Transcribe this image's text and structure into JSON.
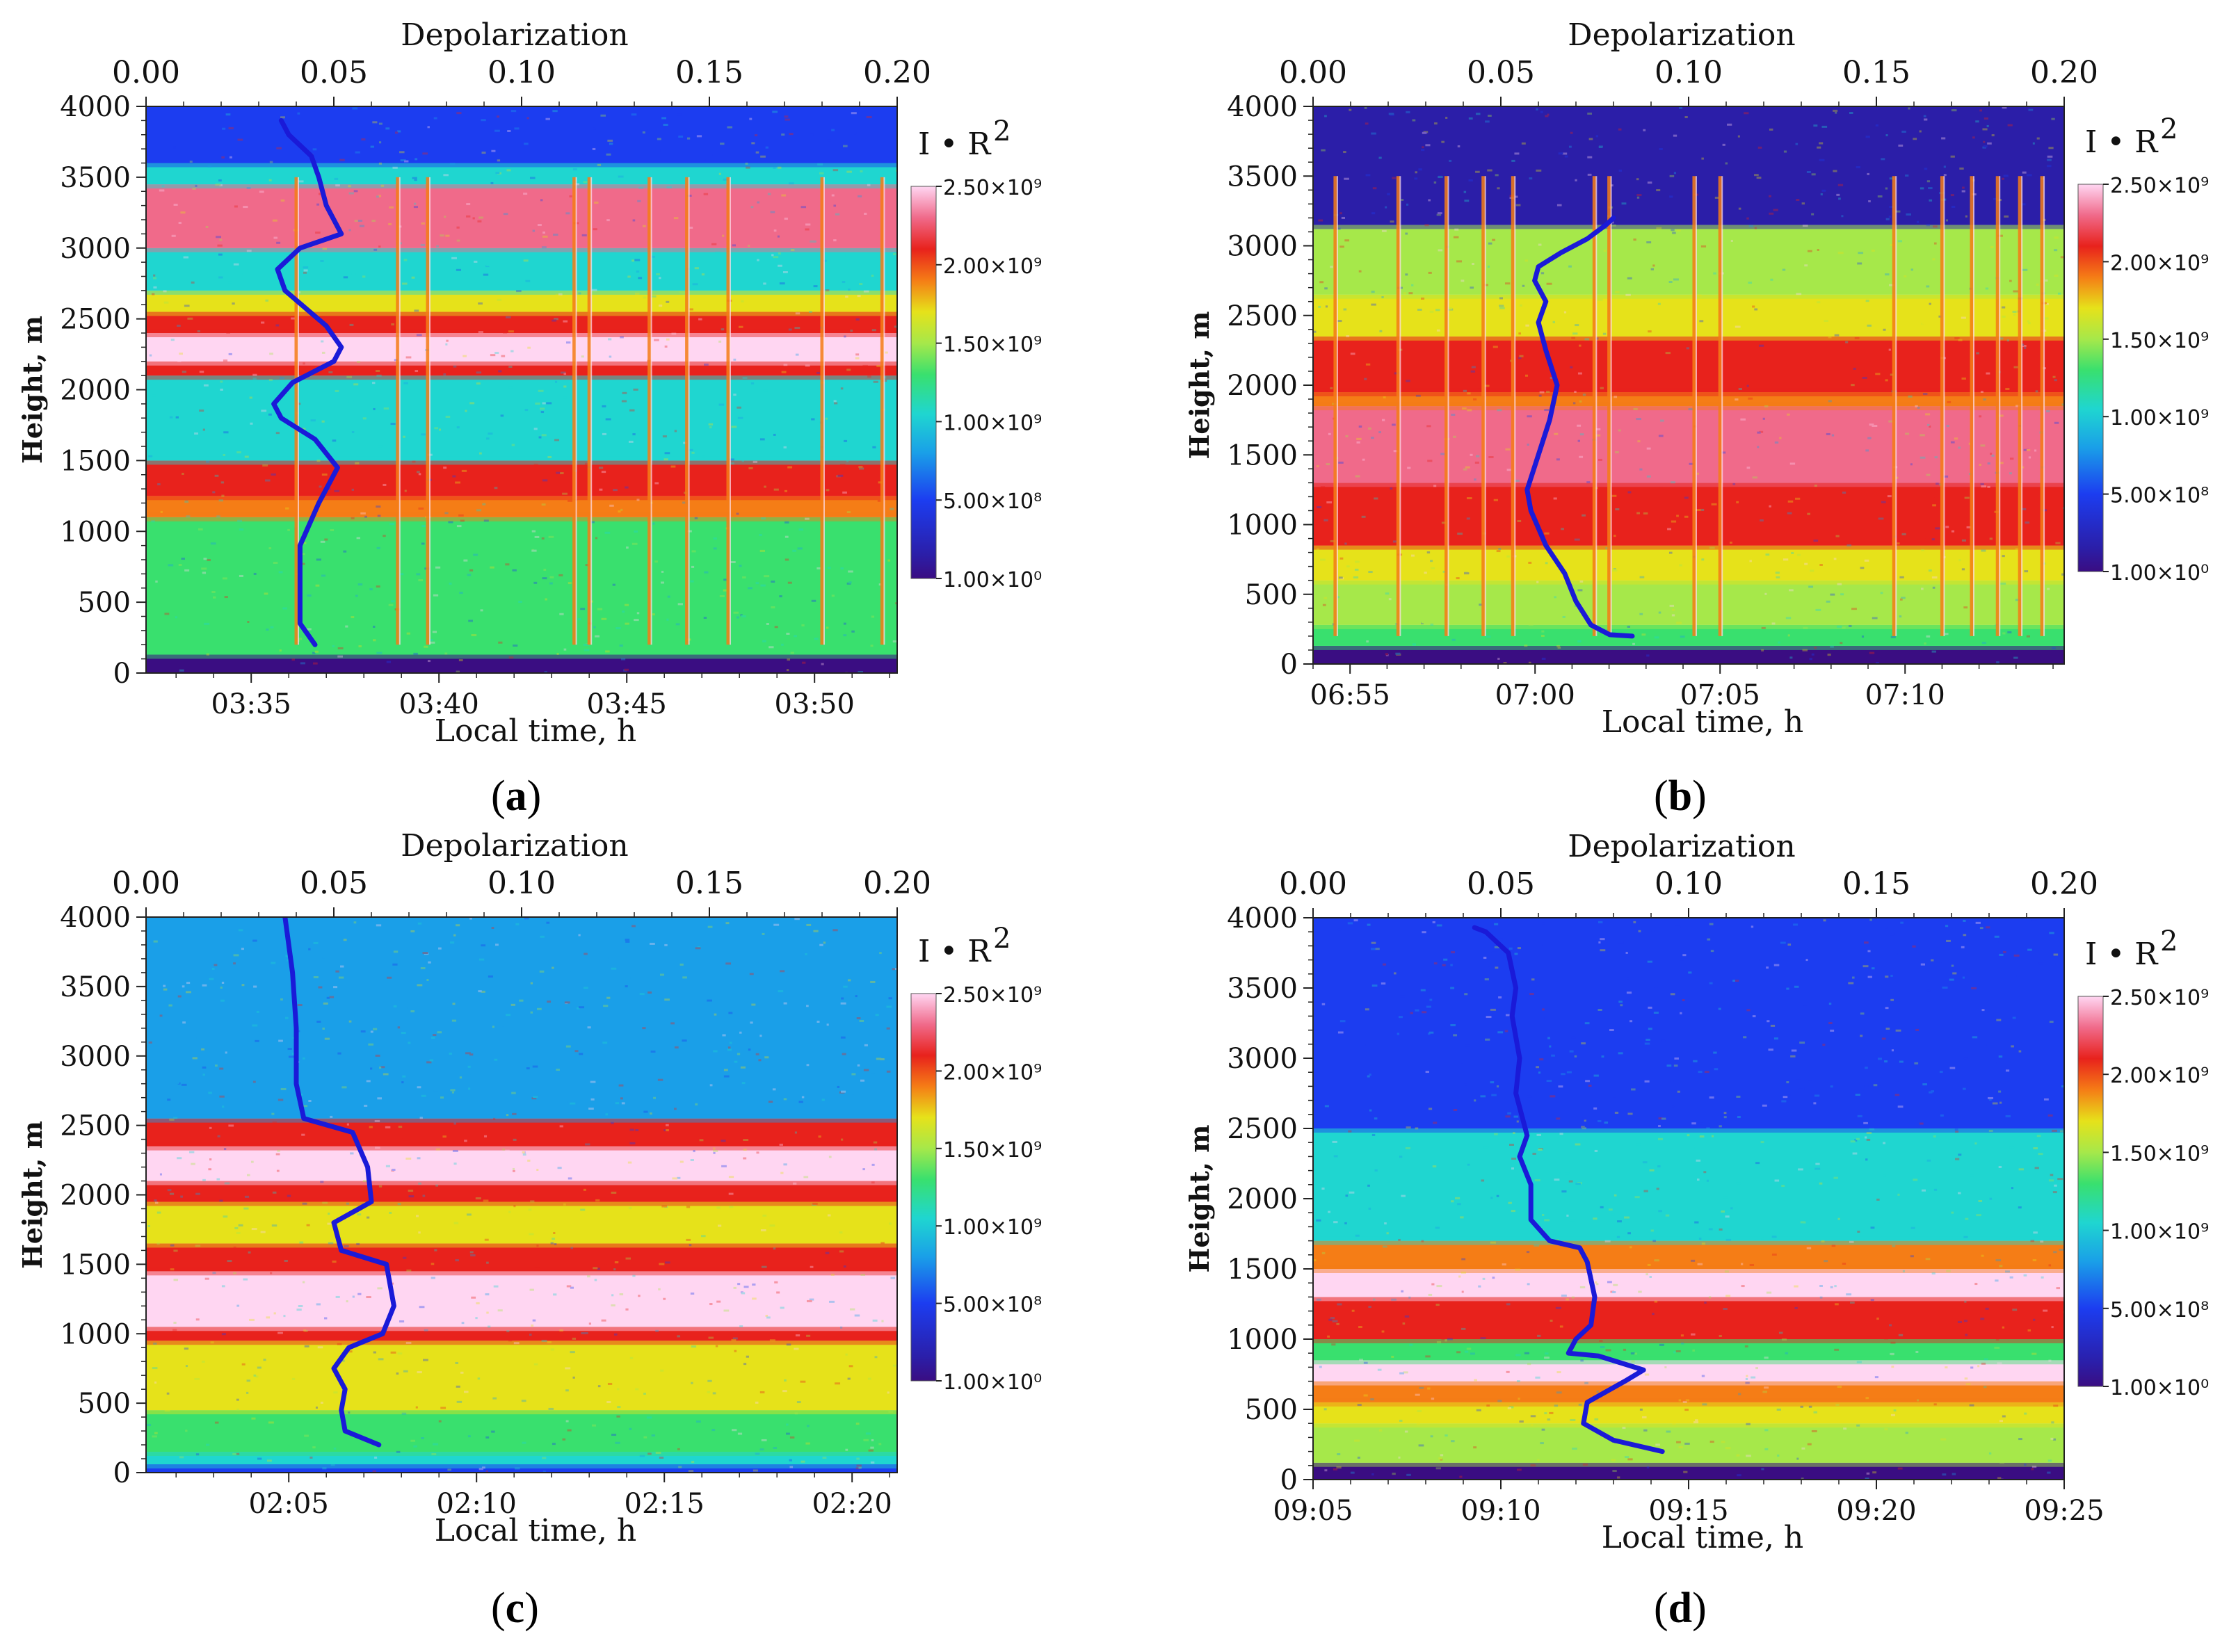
{
  "figure": {
    "colors": {
      "layer_white": "#ffd6f2",
      "layer_pink": "#f06a8a",
      "layer_red": "#e8221c",
      "layer_orange": "#f57d16",
      "layer_yellow": "#e6e21a",
      "layer_lightgreen": "#a6e84a",
      "layer_green": "#39e06e",
      "layer_cyan": "#1fd6d0",
      "layer_skyblue": "#1a9fe8",
      "layer_blue": "#1c3df0",
      "layer_navy": "#2b1ea8",
      "ground": "#3a0d82",
      "profile_line": "#1a1ad8"
    }
  },
  "chart_data": [
    {
      "id": "a",
      "label_open": "(",
      "label_letter": "a",
      "label_close": ")",
      "type": "heatmap",
      "top_axis_title": "Depolarization",
      "top_axis_ticks": [
        "0.00",
        "0.05",
        "0.10",
        "0.15",
        "0.20"
      ],
      "top_axis_range": [
        0,
        0.2
      ],
      "ylabel": "Height, m",
      "y_ticks": [
        "0",
        "500",
        "1000",
        "1500",
        "2000",
        "2500",
        "3000",
        "3500",
        "4000"
      ],
      "ylim": [
        0,
        4000
      ],
      "xlabel": "Local time, h",
      "x_ticks": [
        "03:35",
        "03:40",
        "03:45",
        "03:50"
      ],
      "x_tick_minutes": [
        215,
        220,
        225,
        230
      ],
      "x_range_minutes": [
        212.2,
        232.2
      ],
      "colorbar_title": "I • R",
      "colorbar_sup": "2",
      "colorbar_ticks": [
        "2.50×10⁹",
        "2.00×10⁹",
        "1.50×10⁹",
        "1.00×10⁹",
        "5.00×10⁸",
        "1.00×10⁰"
      ],
      "layers": [
        {
          "from": 0,
          "to": 130,
          "color": "ground"
        },
        {
          "from": 130,
          "to": 1100,
          "color": "layer_green"
        },
        {
          "from": 1100,
          "to": 1250,
          "color": "layer_orange"
        },
        {
          "from": 1250,
          "to": 1500,
          "color": "layer_red"
        },
        {
          "from": 1500,
          "to": 2100,
          "color": "layer_cyan"
        },
        {
          "from": 2100,
          "to": 2200,
          "color": "layer_red"
        },
        {
          "from": 2200,
          "to": 2400,
          "color": "layer_white"
        },
        {
          "from": 2400,
          "to": 2550,
          "color": "layer_red"
        },
        {
          "from": 2550,
          "to": 2700,
          "color": "layer_yellow"
        },
        {
          "from": 2700,
          "to": 3000,
          "color": "layer_cyan"
        },
        {
          "from": 3000,
          "to": 3450,
          "color": "layer_pink"
        },
        {
          "from": 3450,
          "to": 3600,
          "color": "layer_cyan"
        },
        {
          "from": 3600,
          "to": 4000,
          "color": "layer_blue"
        }
      ],
      "streak_minutes": [
        216.2,
        218.9,
        219.7,
        223.6,
        224.0,
        225.6,
        226.6,
        227.7,
        230.2,
        231.8
      ],
      "depolarization_profile": [
        [
          0.045,
          200
        ],
        [
          0.041,
          350
        ],
        [
          0.041,
          600
        ],
        [
          0.041,
          900
        ],
        [
          0.046,
          1200
        ],
        [
          0.051,
          1450
        ],
        [
          0.045,
          1650
        ],
        [
          0.036,
          1800
        ],
        [
          0.034,
          1900
        ],
        [
          0.039,
          2050
        ],
        [
          0.05,
          2200
        ],
        [
          0.052,
          2300
        ],
        [
          0.048,
          2450
        ],
        [
          0.037,
          2700
        ],
        [
          0.035,
          2850
        ],
        [
          0.041,
          3000
        ],
        [
          0.052,
          3100
        ],
        [
          0.048,
          3300
        ],
        [
          0.046,
          3500
        ],
        [
          0.044,
          3650
        ],
        [
          0.038,
          3800
        ],
        [
          0.036,
          3900
        ]
      ]
    },
    {
      "id": "b",
      "label_open": "(",
      "label_letter": "b",
      "label_close": ")",
      "type": "heatmap",
      "top_axis_title": "Depolarization",
      "top_axis_ticks": [
        "0.00",
        "0.05",
        "0.10",
        "0.15",
        "0.20"
      ],
      "top_axis_range": [
        0,
        0.2
      ],
      "ylabel": "Height, m",
      "y_ticks": [
        "0",
        "500",
        "1000",
        "1500",
        "2000",
        "2500",
        "3000",
        "3500",
        "4000"
      ],
      "ylim": [
        0,
        4000
      ],
      "xlabel": "Local time, h",
      "x_ticks": [
        "06:55",
        "07:00",
        "07:05",
        "07:10"
      ],
      "x_tick_minutes": [
        415,
        420,
        425,
        430
      ],
      "x_range_minutes": [
        414.0,
        434.3
      ],
      "colorbar_title": "I • R",
      "colorbar_sup": "2",
      "colorbar_ticks": [
        "2.50×10⁹",
        "2.00×10⁹",
        "1.50×10⁹",
        "1.00×10⁹",
        "5.00×10⁸",
        "1.00×10⁰"
      ],
      "layers": [
        {
          "from": 0,
          "to": 130,
          "color": "ground"
        },
        {
          "from": 130,
          "to": 280,
          "color": "layer_green"
        },
        {
          "from": 280,
          "to": 600,
          "color": "layer_lightgreen"
        },
        {
          "from": 600,
          "to": 850,
          "color": "layer_yellow"
        },
        {
          "from": 850,
          "to": 1300,
          "color": "layer_red"
        },
        {
          "from": 1300,
          "to": 1850,
          "color": "layer_pink"
        },
        {
          "from": 1850,
          "to": 1950,
          "color": "layer_orange"
        },
        {
          "from": 1950,
          "to": 2350,
          "color": "layer_red"
        },
        {
          "from": 2350,
          "to": 2650,
          "color": "layer_yellow"
        },
        {
          "from": 2650,
          "to": 3150,
          "color": "layer_lightgreen"
        },
        {
          "from": 3150,
          "to": 4000,
          "color": "layer_navy"
        }
      ],
      "streak_minutes": [
        414.6,
        416.3,
        417.6,
        418.6,
        419.4,
        421.6,
        422.0,
        424.3,
        425.0,
        429.7,
        431.0,
        431.8,
        432.5,
        433.1,
        433.7
      ],
      "depolarization_profile": [
        [
          0.085,
          200
        ],
        [
          0.079,
          210
        ],
        [
          0.074,
          280
        ],
        [
          0.07,
          450
        ],
        [
          0.067,
          650
        ],
        [
          0.062,
          850
        ],
        [
          0.058,
          1100
        ],
        [
          0.057,
          1250
        ],
        [
          0.06,
          1500
        ],
        [
          0.063,
          1750
        ],
        [
          0.065,
          2000
        ],
        [
          0.062,
          2250
        ],
        [
          0.06,
          2450
        ],
        [
          0.062,
          2600
        ],
        [
          0.059,
          2750
        ],
        [
          0.06,
          2850
        ],
        [
          0.066,
          2950
        ],
        [
          0.073,
          3050
        ],
        [
          0.078,
          3150
        ],
        [
          0.08,
          3200
        ]
      ]
    },
    {
      "id": "c",
      "label_open": "(",
      "label_letter": "c",
      "label_close": ")",
      "type": "heatmap",
      "top_axis_title": "Depolarization",
      "top_axis_ticks": [
        "0.00",
        "0.05",
        "0.10",
        "0.15",
        "0.20"
      ],
      "top_axis_range": [
        0,
        0.2
      ],
      "ylabel": "Height, m",
      "y_ticks": [
        "0",
        "500",
        "1000",
        "1500",
        "2000",
        "2500",
        "3000",
        "3500",
        "4000"
      ],
      "ylim": [
        0,
        4000
      ],
      "xlabel": "Local time, h",
      "x_ticks": [
        "02:05",
        "02:10",
        "02:15",
        "02:20"
      ],
      "x_tick_minutes": [
        125,
        130,
        135,
        140
      ],
      "x_range_minutes": [
        121.2,
        141.2
      ],
      "colorbar_title": "I • R",
      "colorbar_sup": "2",
      "colorbar_ticks": [
        "2.50×10⁹",
        "2.00×10⁹",
        "1.50×10⁹",
        "1.00×10⁹",
        "5.00×10⁸",
        "1.00×10⁰"
      ],
      "layers": [
        {
          "from": 0,
          "to": 60,
          "color": "layer_blue"
        },
        {
          "from": 60,
          "to": 150,
          "color": "layer_cyan"
        },
        {
          "from": 150,
          "to": 450,
          "color": "layer_green"
        },
        {
          "from": 450,
          "to": 950,
          "color": "layer_yellow"
        },
        {
          "from": 950,
          "to": 1050,
          "color": "layer_red"
        },
        {
          "from": 1050,
          "to": 1450,
          "color": "layer_white"
        },
        {
          "from": 1450,
          "to": 1650,
          "color": "layer_red"
        },
        {
          "from": 1650,
          "to": 1950,
          "color": "layer_yellow"
        },
        {
          "from": 1950,
          "to": 2100,
          "color": "layer_red"
        },
        {
          "from": 2100,
          "to": 2350,
          "color": "layer_white"
        },
        {
          "from": 2350,
          "to": 2550,
          "color": "layer_red"
        },
        {
          "from": 2550,
          "to": 4000,
          "color": "layer_skyblue"
        }
      ],
      "streak_minutes": [],
      "depolarization_profile": [
        [
          0.062,
          200
        ],
        [
          0.053,
          300
        ],
        [
          0.052,
          450
        ],
        [
          0.053,
          600
        ],
        [
          0.05,
          750
        ],
        [
          0.054,
          900
        ],
        [
          0.063,
          1000
        ],
        [
          0.066,
          1200
        ],
        [
          0.064,
          1500
        ],
        [
          0.052,
          1600
        ],
        [
          0.05,
          1800
        ],
        [
          0.06,
          1950
        ],
        [
          0.059,
          2200
        ],
        [
          0.055,
          2450
        ],
        [
          0.042,
          2550
        ],
        [
          0.04,
          2800
        ],
        [
          0.04,
          3200
        ],
        [
          0.039,
          3600
        ],
        [
          0.037,
          4000
        ]
      ]
    },
    {
      "id": "d",
      "label_open": "(",
      "label_letter": "d",
      "label_close": ")",
      "type": "heatmap",
      "top_axis_title": "Depolarization",
      "top_axis_ticks": [
        "0.00",
        "0.05",
        "0.10",
        "0.15",
        "0.20"
      ],
      "top_axis_range": [
        0,
        0.2
      ],
      "ylabel": "Height, m",
      "y_ticks": [
        "0",
        "500",
        "1000",
        "1500",
        "2000",
        "2500",
        "3000",
        "3500",
        "4000"
      ],
      "ylim": [
        0,
        4000
      ],
      "xlabel": "Local time, h",
      "x_ticks": [
        "09:05",
        "09:10",
        "09:15",
        "09:20",
        "09:25"
      ],
      "x_tick_minutes": [
        545,
        550,
        555,
        560,
        565
      ],
      "x_range_minutes": [
        545,
        565
      ],
      "colorbar_title": "I • R",
      "colorbar_sup": "2",
      "colorbar_ticks": [
        "2.50×10⁹",
        "2.00×10⁹",
        "1.50×10⁹",
        "1.00×10⁹",
        "5.00×10⁸",
        "1.00×10⁰"
      ],
      "layers": [
        {
          "from": 0,
          "to": 120,
          "color": "ground"
        },
        {
          "from": 120,
          "to": 400,
          "color": "layer_lightgreen"
        },
        {
          "from": 400,
          "to": 550,
          "color": "layer_yellow"
        },
        {
          "from": 550,
          "to": 700,
          "color": "layer_orange"
        },
        {
          "from": 700,
          "to": 850,
          "color": "layer_white"
        },
        {
          "from": 850,
          "to": 1000,
          "color": "layer_green"
        },
        {
          "from": 1000,
          "to": 1300,
          "color": "layer_red"
        },
        {
          "from": 1300,
          "to": 1500,
          "color": "layer_white"
        },
        {
          "from": 1500,
          "to": 1700,
          "color": "layer_orange"
        },
        {
          "from": 1700,
          "to": 2500,
          "color": "layer_cyan"
        },
        {
          "from": 2500,
          "to": 4000,
          "color": "layer_blue"
        }
      ],
      "streak_minutes": [],
      "depolarization_profile": [
        [
          0.093,
          200
        ],
        [
          0.08,
          280
        ],
        [
          0.072,
          400
        ],
        [
          0.073,
          550
        ],
        [
          0.083,
          700
        ],
        [
          0.088,
          780
        ],
        [
          0.076,
          880
        ],
        [
          0.068,
          900
        ],
        [
          0.07,
          1000
        ],
        [
          0.074,
          1100
        ],
        [
          0.075,
          1300
        ],
        [
          0.073,
          1550
        ],
        [
          0.071,
          1650
        ],
        [
          0.063,
          1700
        ],
        [
          0.058,
          1850
        ],
        [
          0.058,
          2100
        ],
        [
          0.055,
          2300
        ],
        [
          0.057,
          2450
        ],
        [
          0.054,
          2750
        ],
        [
          0.055,
          3000
        ],
        [
          0.053,
          3300
        ],
        [
          0.054,
          3500
        ],
        [
          0.052,
          3750
        ],
        [
          0.046,
          3900
        ],
        [
          0.043,
          3930
        ]
      ]
    }
  ]
}
